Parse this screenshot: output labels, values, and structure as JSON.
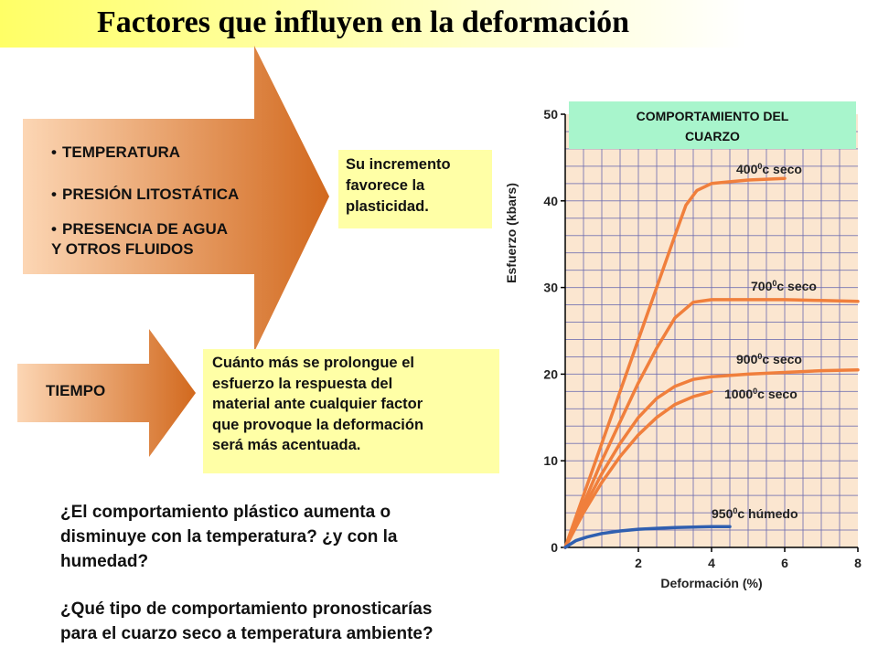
{
  "title": "Factores que influyen en la deformación",
  "factors": {
    "items": [
      "TEMPERATURA",
      "PRESIÓN LITOSTÁTICA",
      "PRESENCIA DE AGUA",
      "Y OTROS FLUIDOS"
    ],
    "bullet": "•"
  },
  "notes": {
    "plasticity_lines": [
      "Su incremento",
      "favorece la",
      "plasticidad."
    ],
    "time_label": "TIEMPO",
    "time_lines": [
      "Cuánto más se prolongue el",
      "esfuerzo la respuesta del",
      "material ante cualquier factor",
      "que provoque la deformación",
      "será más acentuada."
    ]
  },
  "questions": {
    "q1_lines": [
      "¿El comportamiento plástico aumenta o",
      "disminuye con la temperatura? ¿y con la",
      "humedad?"
    ],
    "q2_lines": [
      "¿Qué tipo de comportamiento pronosticarías",
      "para el cuarzo seco a temperatura ambiente?"
    ]
  },
  "colors": {
    "arrow_dark": "#d2691e",
    "arrow_light": "#fcd6b4",
    "note_bg": "#ffffa6",
    "plot_bg": "#fbe6d0",
    "grid": "#6b6bb0",
    "dry_series": "#f07f3c",
    "wet_series": "#2f5fb0",
    "chart_title_bg": "#a8f5cc"
  },
  "chart_data": {
    "type": "line",
    "title_lines": [
      "COMPORTAMIENTO DEL",
      "CUARZO"
    ],
    "xlabel": "Deformación (%)",
    "ylabel": "Esfuerzo (kbars)",
    "xlim": [
      0,
      8
    ],
    "ylim": [
      0,
      50
    ],
    "xticks": [
      2,
      4,
      6,
      8
    ],
    "yticks": [
      0,
      10,
      20,
      30,
      40,
      50
    ],
    "grid": true,
    "series": [
      {
        "name": "400 ºc seco",
        "label_main": "400",
        "label_sup": "0",
        "label_rest": "c seco",
        "color": "dry",
        "x": [
          0,
          0.5,
          1.0,
          1.5,
          2.0,
          2.5,
          3.0,
          3.3,
          3.6,
          4.0,
          4.5,
          5.0,
          5.5,
          6.0
        ],
        "y": [
          0,
          6,
          12,
          18,
          24,
          30,
          36,
          39.5,
          41.2,
          42,
          42.2,
          42.4,
          42.5,
          42.6
        ]
      },
      {
        "name": "700 ºc seco",
        "label_main": "700",
        "label_sup": "0",
        "label_rest": "c seco",
        "color": "dry",
        "x": [
          0,
          0.5,
          1.0,
          1.5,
          2.0,
          2.5,
          3.0,
          3.5,
          4.0,
          5.0,
          6.0,
          7.0,
          8.0
        ],
        "y": [
          0,
          5,
          10,
          14.5,
          19,
          23,
          26.5,
          28.3,
          28.6,
          28.6,
          28.6,
          28.5,
          28.4
        ]
      },
      {
        "name": "900 ºc seco",
        "label_main": "900",
        "label_sup": "0",
        "label_rest": "c seco",
        "color": "dry",
        "x": [
          0,
          0.5,
          1.0,
          1.5,
          2.0,
          2.5,
          3.0,
          3.5,
          4.0,
          5.0,
          6.0,
          7.0,
          8.0
        ],
        "y": [
          0,
          4.5,
          8.5,
          12,
          15,
          17.2,
          18.6,
          19.4,
          19.7,
          20,
          20.2,
          20.4,
          20.5
        ]
      },
      {
        "name": "1000 ºc seco",
        "label_main": "1000",
        "label_sup": "0",
        "label_rest": "c seco",
        "color": "dry",
        "x": [
          0,
          0.5,
          1.0,
          1.5,
          2.0,
          2.5,
          3.0,
          3.5,
          4.0
        ],
        "y": [
          0,
          4,
          7.5,
          10.5,
          13,
          15,
          16.5,
          17.4,
          18
        ]
      },
      {
        "name": "950 ºc húmedo",
        "label_main": "950",
        "label_sup": "0",
        "label_rest": "c húmedo",
        "color": "wet",
        "x": [
          0,
          0.3,
          0.6,
          1.0,
          1.5,
          2.0,
          2.5,
          3.0,
          3.5,
          4.0,
          4.5
        ],
        "y": [
          0,
          0.8,
          1.2,
          1.6,
          1.9,
          2.1,
          2.2,
          2.3,
          2.35,
          2.4,
          2.4
        ]
      }
    ]
  }
}
